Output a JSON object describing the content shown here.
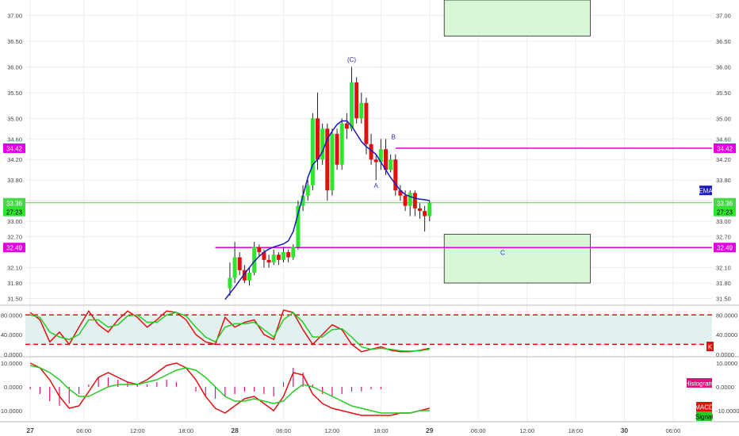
{
  "chart_data": [
    {
      "type": "candlestick",
      "panel": "price",
      "ylim": [
        31.4,
        37.3
      ],
      "y_ticks": [
        "37.00",
        "36.50",
        "36.00",
        "35.50",
        "35.00",
        "34.60",
        "34.20",
        "33.80",
        "33.40",
        "33.00",
        "32.70",
        "32.10",
        "31.80",
        "31.50"
      ],
      "series": [
        {
          "name": "EMA",
          "type": "line",
          "color": "#1a1ab8",
          "x": [
            20.0,
            20.5,
            21.0,
            21.5,
            22.0,
            22.5,
            23.0,
            23.5,
            24.0,
            24.5,
            25.0,
            25.5,
            26.0,
            26.5,
            27.0,
            27.5,
            28.0,
            28.5,
            29.0,
            29.5,
            30.0,
            30.5,
            31.0,
            31.5,
            32.0,
            32.5,
            33.0,
            33.5,
            34.0,
            34.5,
            35.0,
            35.5,
            36.0,
            36.5,
            37.0,
            37.5,
            38.0,
            38.5,
            39.0,
            39.5,
            40.0,
            40.5,
            41.0
          ],
          "values": [
            31.48,
            31.6,
            31.72,
            31.85,
            31.98,
            32.1,
            32.22,
            32.32,
            32.4,
            32.46,
            32.5,
            32.53,
            32.56,
            32.62,
            32.8,
            33.15,
            33.5,
            33.85,
            34.1,
            34.2,
            34.35,
            34.6,
            34.75,
            34.88,
            34.95,
            34.95,
            34.85,
            34.7,
            34.55,
            34.45,
            34.38,
            34.3,
            34.15,
            34.0,
            33.85,
            33.72,
            33.6,
            33.52,
            33.48,
            33.45,
            33.43,
            33.42,
            33.4
          ]
        }
      ],
      "candles": [
        [
          20.5,
          31.7,
          31.9,
          31.55,
          32.2
        ],
        [
          21.0,
          31.9,
          32.3,
          31.8,
          32.6
        ],
        [
          21.5,
          32.3,
          32.05,
          31.95,
          32.4
        ],
        [
          22.0,
          32.05,
          31.85,
          31.8,
          32.15
        ],
        [
          22.5,
          31.85,
          32.0,
          31.75,
          32.1
        ],
        [
          23.0,
          32.0,
          32.5,
          31.95,
          32.6
        ],
        [
          23.5,
          32.5,
          32.4,
          32.3,
          32.55
        ],
        [
          24.0,
          32.4,
          32.25,
          32.1,
          32.45
        ],
        [
          24.5,
          32.25,
          32.2,
          32.1,
          32.35
        ],
        [
          25.0,
          32.2,
          32.35,
          32.15,
          32.45
        ],
        [
          25.5,
          32.35,
          32.25,
          32.15,
          32.4
        ],
        [
          26.0,
          32.25,
          32.4,
          32.2,
          32.5
        ],
        [
          26.5,
          32.4,
          32.3,
          32.2,
          32.45
        ],
        [
          27.0,
          32.3,
          32.5,
          32.25,
          32.55
        ],
        [
          27.5,
          32.5,
          33.3,
          32.45,
          33.4
        ],
        [
          28.0,
          33.3,
          33.5,
          33.2,
          33.7
        ],
        [
          28.5,
          33.5,
          33.7,
          33.4,
          33.8
        ],
        [
          29.0,
          33.7,
          35.0,
          33.6,
          35.1
        ],
        [
          29.5,
          35.0,
          34.2,
          34.0,
          35.5
        ],
        [
          30.0,
          34.2,
          34.8,
          34.1,
          34.9
        ],
        [
          30.5,
          34.8,
          33.6,
          33.4,
          34.9
        ],
        [
          31.0,
          33.6,
          34.7,
          33.5,
          34.8
        ],
        [
          31.5,
          34.7,
          34.1,
          34.0,
          34.8
        ],
        [
          32.0,
          34.1,
          34.9,
          34.0,
          35.0
        ],
        [
          32.5,
          34.9,
          34.8,
          34.6,
          35.1
        ],
        [
          33.0,
          34.8,
          35.7,
          34.75,
          36.0
        ],
        [
          33.5,
          35.7,
          35.0,
          34.9,
          35.8
        ],
        [
          34.0,
          35.0,
          35.3,
          34.9,
          35.5
        ],
        [
          34.5,
          35.3,
          34.5,
          34.3,
          35.4
        ],
        [
          35.0,
          34.5,
          34.2,
          34.1,
          34.7
        ],
        [
          35.5,
          34.2,
          34.15,
          33.8,
          34.3
        ],
        [
          36.0,
          34.15,
          34.4,
          34.0,
          34.6
        ],
        [
          36.5,
          34.4,
          34.0,
          33.9,
          34.6
        ],
        [
          37.0,
          34.0,
          34.2,
          33.95,
          34.3
        ],
        [
          37.5,
          34.2,
          33.6,
          33.5,
          34.3
        ],
        [
          38.0,
          33.6,
          33.5,
          33.4,
          33.7
        ],
        [
          38.5,
          33.5,
          33.3,
          33.2,
          33.6
        ],
        [
          39.0,
          33.3,
          33.55,
          33.1,
          33.6
        ],
        [
          39.5,
          33.55,
          33.25,
          33.1,
          33.6
        ],
        [
          40.0,
          33.25,
          33.2,
          33.05,
          33.35
        ],
        [
          40.5,
          33.2,
          33.1,
          32.8,
          33.3
        ],
        [
          41.0,
          33.1,
          33.36,
          33.0,
          33.4
        ]
      ],
      "horizontal_lines": [
        {
          "value": 34.42,
          "label": "34.42",
          "color": "#e000e0"
        },
        {
          "value": 32.49,
          "label": "32.49",
          "color": "#e000e0"
        },
        {
          "value": 33.36,
          "label": "33.36",
          "color": "#49d649"
        }
      ],
      "last_price_label": "33.36",
      "countdown_label": "27:23",
      "zones": [
        {
          "x_from": 42.5,
          "x_to": 57.5,
          "y_from": 36.6,
          "y_to": 37.3,
          "color": "#d7f7d7"
        },
        {
          "x_from": 42.5,
          "x_to": 57.5,
          "y_from": 31.8,
          "y_to": 32.75,
          "color": "#d7f7d7"
        }
      ],
      "annotations": [
        {
          "text": "(C)",
          "x": 33.0,
          "y": 36.1
        },
        {
          "text": "B",
          "x": 37.3,
          "y": 34.6
        },
        {
          "text": "A",
          "x": 35.5,
          "y": 33.65
        },
        {
          "text": "C",
          "x": 48.5,
          "y": 32.35
        }
      ],
      "legend_tag": "EMA"
    },
    {
      "type": "line",
      "panel": "stochastic",
      "ylim": [
        -2,
        95
      ],
      "y_ticks": [
        "80.0000",
        "40.0000",
        "0.0000"
      ],
      "bands": [
        20,
        80
      ],
      "series": [
        {
          "name": "K",
          "color": "#e01010",
          "x": [
            0,
            1,
            2,
            3,
            4,
            5,
            6,
            7,
            8,
            9,
            10,
            11,
            12,
            13,
            14,
            15,
            16,
            17,
            18,
            19,
            20,
            21,
            22,
            23,
            24,
            25,
            26,
            27,
            28,
            29,
            30,
            31,
            32,
            33,
            34,
            35,
            36,
            37,
            38,
            39,
            40,
            41
          ],
          "values": [
            85,
            70,
            25,
            45,
            20,
            55,
            88,
            60,
            45,
            70,
            88,
            75,
            55,
            70,
            88,
            85,
            70,
            40,
            25,
            20,
            75,
            55,
            65,
            70,
            40,
            30,
            90,
            85,
            50,
            20,
            40,
            60,
            50,
            20,
            5,
            10,
            15,
            8,
            5,
            5,
            8,
            12
          ]
        },
        {
          "name": "Signal",
          "color": "#22cc22",
          "x": [
            0,
            1,
            2,
            3,
            4,
            5,
            6,
            7,
            8,
            9,
            10,
            11,
            12,
            13,
            14,
            15,
            16,
            17,
            18,
            19,
            20,
            21,
            22,
            23,
            24,
            25,
            26,
            27,
            28,
            29,
            30,
            31,
            32,
            33,
            34,
            35,
            36,
            37,
            38,
            39,
            40,
            41
          ],
          "values": [
            80,
            75,
            45,
            35,
            30,
            40,
            70,
            70,
            55,
            60,
            78,
            80,
            65,
            65,
            80,
            85,
            78,
            55,
            35,
            25,
            55,
            62,
            62,
            65,
            50,
            35,
            70,
            85,
            65,
            35,
            35,
            50,
            52,
            35,
            15,
            10,
            12,
            10,
            7,
            6,
            7,
            10
          ]
        }
      ],
      "right_tags": [
        "K"
      ]
    },
    {
      "type": "bar",
      "panel": "macd",
      "ylim": [
        -14,
        12
      ],
      "y_ticks": [
        "10.0000",
        "0.0000",
        "-10.0000"
      ],
      "series": [
        {
          "name": "Histogram",
          "type": "bar",
          "color": "#e0107a",
          "x": [
            0,
            1,
            2,
            3,
            4,
            5,
            6,
            7,
            8,
            9,
            10,
            11,
            12,
            13,
            14,
            15,
            16,
            17,
            18,
            19,
            20,
            21,
            22,
            23,
            24,
            25,
            26,
            27,
            28,
            29,
            30,
            31,
            32,
            33,
            34,
            35,
            36,
            37,
            38,
            39,
            40,
            41
          ],
          "values": [
            -1,
            -3,
            -6,
            -8,
            -7,
            -3,
            1,
            4,
            4,
            3,
            2,
            1,
            1,
            2,
            3,
            2,
            0,
            -2,
            -4,
            -5,
            -4,
            -3,
            -2,
            -2,
            -3,
            -4,
            2,
            8,
            6,
            1,
            -3,
            -4,
            -3,
            -2,
            -2,
            -1,
            -1,
            0,
            0,
            0,
            0,
            0
          ]
        },
        {
          "name": "MACD",
          "color": "#e01010",
          "x": [
            0,
            1,
            2,
            3,
            4,
            5,
            6,
            7,
            8,
            9,
            10,
            11,
            12,
            13,
            14,
            15,
            16,
            17,
            18,
            19,
            20,
            21,
            22,
            23,
            24,
            25,
            26,
            27,
            28,
            29,
            30,
            31,
            32,
            33,
            34,
            35,
            36,
            37,
            38,
            39,
            40,
            41
          ],
          "values": [
            10,
            8,
            3,
            -4,
            -9,
            -8,
            -2,
            4,
            6,
            4,
            2,
            1,
            3,
            6,
            9,
            10,
            8,
            3,
            -4,
            -9,
            -11,
            -8,
            -5,
            -4,
            -7,
            -10,
            -4,
            6,
            5,
            -3,
            -7,
            -9,
            -10,
            -11,
            -12,
            -12,
            -12,
            -12,
            -11,
            -11,
            -10,
            -9
          ]
        },
        {
          "name": "Signal",
          "color": "#22cc22",
          "x": [
            0,
            1,
            2,
            3,
            4,
            5,
            6,
            7,
            8,
            9,
            10,
            11,
            12,
            13,
            14,
            15,
            16,
            17,
            18,
            19,
            20,
            21,
            22,
            23,
            24,
            25,
            26,
            27,
            28,
            29,
            30,
            31,
            32,
            33,
            34,
            35,
            36,
            37,
            38,
            39,
            40,
            41
          ],
          "values": [
            9,
            8,
            6,
            3,
            -1,
            -4,
            -4,
            -2,
            0,
            1,
            1,
            1,
            2,
            3,
            5,
            7,
            8,
            7,
            4,
            0,
            -4,
            -6,
            -6,
            -5,
            -6,
            -7,
            -6,
            -2,
            1,
            0,
            -2,
            -4,
            -6,
            -8,
            -9,
            -10,
            -11,
            -11,
            -11,
            -11,
            -10,
            -10
          ]
        }
      ],
      "right_tags": [
        "Histogram",
        "MACD",
        "Signal"
      ]
    }
  ],
  "x_axis": {
    "ticks": [
      {
        "label": "27",
        "x": 0,
        "bold": true
      },
      {
        "label": "06:00",
        "x": 5.5
      },
      {
        "label": "12:00",
        "x": 11
      },
      {
        "label": "18:00",
        "x": 16
      },
      {
        "label": "28",
        "x": 21,
        "bold": true
      },
      {
        "label": "06:00",
        "x": 26
      },
      {
        "label": "12:00",
        "x": 31
      },
      {
        "label": "18:00",
        "x": 36
      },
      {
        "label": "29",
        "x": 41,
        "bold": true
      },
      {
        "label": "06:00",
        "x": 46
      },
      {
        "label": "12:00",
        "x": 51
      },
      {
        "label": "18:00",
        "x": 56
      },
      {
        "label": "30",
        "x": 61,
        "bold": true
      },
      {
        "label": "06:00",
        "x": 66
      }
    ],
    "xlim": [
      -0.5,
      70
    ]
  },
  "colors": {
    "up": "#2ee62e",
    "down": "#e01010",
    "magenta": "#e000e0",
    "grid": "#ececec"
  }
}
